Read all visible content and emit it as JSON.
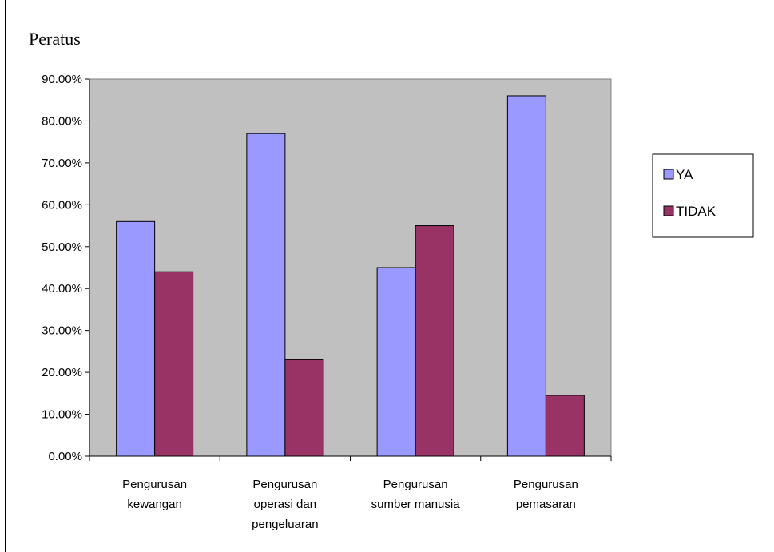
{
  "chart_data": {
    "type": "bar",
    "ylabel": "Peratus",
    "xlabel": "",
    "ylim": [
      0,
      90
    ],
    "yticks": [
      0,
      10,
      20,
      30,
      40,
      50,
      60,
      70,
      80,
      90
    ],
    "ytick_labels": [
      "0.00%",
      "10.00%",
      "20.00%",
      "30.00%",
      "40.00%",
      "50.00%",
      "60.00%",
      "70.00%",
      "80.00%",
      "90.00%"
    ],
    "categories": [
      [
        "Pengurusan",
        "kewangan"
      ],
      [
        "Pengurusan",
        "operasi dan",
        "pengeluaran"
      ],
      [
        "Pengurusan",
        "sumber manusia"
      ],
      [
        "Pengurusan",
        "pemasaran"
      ]
    ],
    "series": [
      {
        "name": "YA",
        "color": "#9999ff",
        "values": [
          56,
          77,
          45,
          86
        ]
      },
      {
        "name": "TIDAK",
        "color": "#993366",
        "values": [
          44,
          23,
          55,
          14.5
        ]
      }
    ],
    "plot_background": "#c0c0c0",
    "grid": false,
    "legend_position": "right"
  }
}
